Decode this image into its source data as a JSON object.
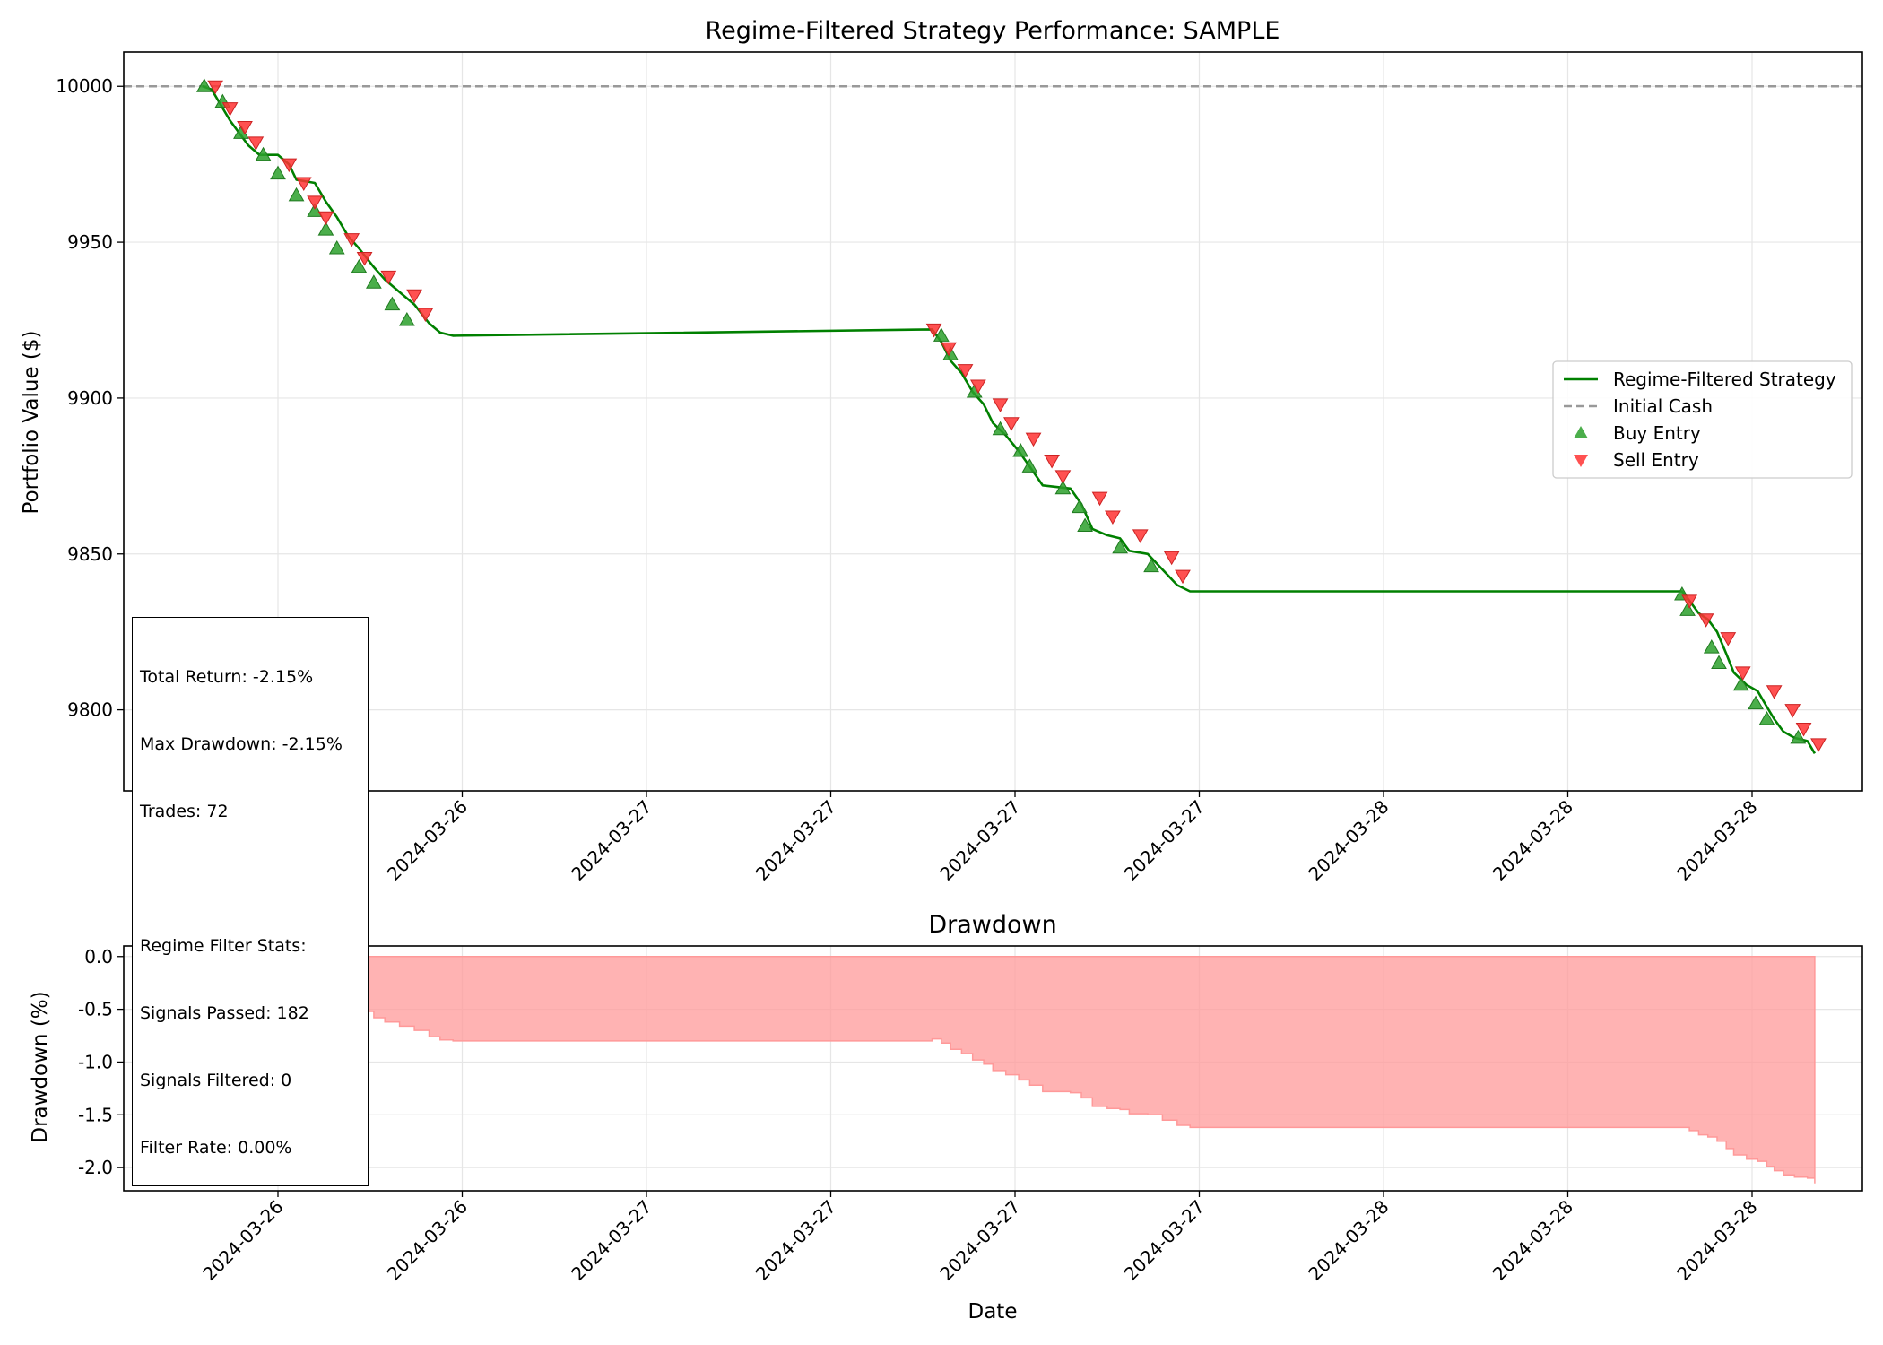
{
  "chart_data": [
    {
      "type": "line",
      "title": "Regime-Filtered Strategy Performance: SAMPLE",
      "xlabel": "",
      "ylabel": "Portfolio Value ($)",
      "ylim": [
        9774,
        10011
      ],
      "y_ticks": [
        10000,
        9950,
        9900,
        9850,
        9800
      ],
      "x_tick_labels": [
        "2024-03-26",
        "2024-03-26",
        "2024-03-27",
        "2024-03-27",
        "2024-03-27",
        "2024-03-27",
        "2024-03-28",
        "2024-03-28",
        "2024-03-28"
      ],
      "grid": true,
      "legend_position": "center-right",
      "legend": [
        {
          "label": "Regime-Filtered Strategy",
          "kind": "line",
          "color": "#008000"
        },
        {
          "label": "Initial Cash",
          "kind": "dashed",
          "color": "#999999"
        },
        {
          "label": "Buy Entry",
          "kind": "triangle-up",
          "color": "#2ca02c"
        },
        {
          "label": "Sell Entry",
          "kind": "triangle-down",
          "color": "#ff3333"
        }
      ],
      "initial_cash": 10000,
      "x_range_ticks": [
        -0.42,
        9.28
      ],
      "series": [
        {
          "name": "Regime-Filtered Strategy",
          "points": [
            [
              -0.41,
              10000
            ],
            [
              -0.36,
              9999
            ],
            [
              -0.31,
              9994
            ],
            [
              -0.26,
              9989
            ],
            [
              -0.21,
              9985
            ],
            [
              -0.16,
              9981
            ],
            [
              -0.1,
              9978
            ],
            [
              0.0,
              9978
            ],
            [
              0.06,
              9975
            ],
            [
              0.1,
              9970
            ],
            [
              0.2,
              9969
            ],
            [
              0.26,
              9963
            ],
            [
              0.32,
              9958
            ],
            [
              0.38,
              9952
            ],
            [
              0.44,
              9948
            ],
            [
              0.52,
              9942
            ],
            [
              0.58,
              9938
            ],
            [
              0.66,
              9934
            ],
            [
              0.74,
              9930
            ],
            [
              0.82,
              9924
            ],
            [
              0.88,
              9921
            ],
            [
              0.95,
              9920
            ],
            [
              3.55,
              9922
            ],
            [
              3.6,
              9918
            ],
            [
              3.65,
              9912
            ],
            [
              3.71,
              9908
            ],
            [
              3.77,
              9902
            ],
            [
              3.83,
              9898
            ],
            [
              3.88,
              9892
            ],
            [
              3.95,
              9888
            ],
            [
              4.02,
              9883
            ],
            [
              4.08,
              9878
            ],
            [
              4.15,
              9872
            ],
            [
              4.3,
              9871
            ],
            [
              4.36,
              9866
            ],
            [
              4.42,
              9858
            ],
            [
              4.5,
              9856
            ],
            [
              4.57,
              9855
            ],
            [
              4.62,
              9851
            ],
            [
              4.72,
              9850
            ],
            [
              4.8,
              9845
            ],
            [
              4.88,
              9840
            ],
            [
              4.95,
              9838
            ],
            [
              5.1,
              9838
            ],
            [
              7.62,
              9838
            ],
            [
              7.66,
              9835
            ],
            [
              7.71,
              9831
            ],
            [
              7.76,
              9829
            ],
            [
              7.81,
              9825
            ],
            [
              7.86,
              9818
            ],
            [
              7.9,
              9812
            ],
            [
              7.97,
              9808
            ],
            [
              8.03,
              9806
            ],
            [
              8.08,
              9801
            ],
            [
              8.12,
              9797
            ],
            [
              8.17,
              9793
            ],
            [
              8.23,
              9791
            ],
            [
              8.3,
              9790
            ],
            [
              8.34,
              9786
            ]
          ]
        },
        {
          "name": "Buy Entry",
          "points": [
            [
              -0.4,
              10000
            ],
            [
              -0.3,
              9995
            ],
            [
              -0.2,
              9985
            ],
            [
              -0.08,
              9978
            ],
            [
              0.0,
              9972
            ],
            [
              0.1,
              9965
            ],
            [
              0.2,
              9960
            ],
            [
              0.26,
              9954
            ],
            [
              0.32,
              9948
            ],
            [
              0.44,
              9942
            ],
            [
              0.52,
              9937
            ],
            [
              0.62,
              9930
            ],
            [
              0.7,
              9925
            ],
            [
              3.6,
              9920
            ],
            [
              3.65,
              9914
            ],
            [
              3.78,
              9902
            ],
            [
              3.92,
              9890
            ],
            [
              4.03,
              9883
            ],
            [
              4.08,
              9878
            ],
            [
              4.26,
              9871
            ],
            [
              4.35,
              9865
            ],
            [
              4.38,
              9859
            ],
            [
              4.57,
              9852
            ],
            [
              4.74,
              9846
            ],
            [
              7.62,
              9837
            ],
            [
              7.65,
              9832
            ],
            [
              7.78,
              9820
            ],
            [
              7.82,
              9815
            ],
            [
              7.94,
              9808
            ],
            [
              8.02,
              9802
            ],
            [
              8.08,
              9797
            ],
            [
              8.25,
              9791
            ]
          ]
        },
        {
          "name": "Sell Entry",
          "points": [
            [
              -0.34,
              10000
            ],
            [
              -0.26,
              9993
            ],
            [
              -0.18,
              9987
            ],
            [
              -0.12,
              9982
            ],
            [
              0.06,
              9975
            ],
            [
              0.14,
              9969
            ],
            [
              0.2,
              9963
            ],
            [
              0.26,
              9958
            ],
            [
              0.4,
              9951
            ],
            [
              0.47,
              9945
            ],
            [
              0.6,
              9939
            ],
            [
              0.74,
              9933
            ],
            [
              0.8,
              9927
            ],
            [
              3.56,
              9922
            ],
            [
              3.64,
              9916
            ],
            [
              3.73,
              9909
            ],
            [
              3.8,
              9904
            ],
            [
              3.92,
              9898
            ],
            [
              3.98,
              9892
            ],
            [
              4.1,
              9887
            ],
            [
              4.2,
              9880
            ],
            [
              4.26,
              9875
            ],
            [
              4.46,
              9868
            ],
            [
              4.53,
              9862
            ],
            [
              4.68,
              9856
            ],
            [
              4.85,
              9849
            ],
            [
              4.91,
              9843
            ],
            [
              7.66,
              9835
            ],
            [
              7.75,
              9829
            ],
            [
              7.87,
              9823
            ],
            [
              7.95,
              9812
            ],
            [
              8.12,
              9806
            ],
            [
              8.22,
              9800
            ],
            [
              8.28,
              9794
            ],
            [
              8.36,
              9789
            ]
          ]
        }
      ]
    },
    {
      "type": "area",
      "title": "Drawdown",
      "xlabel": "Date",
      "ylabel": "Drawdown (%)",
      "ylim": [
        -2.22,
        0.1
      ],
      "y_ticks": [
        0.0,
        -0.5,
        -1.0,
        -1.5,
        -2.0
      ],
      "x_tick_labels": [
        "2024-03-26",
        "2024-03-26",
        "2024-03-27",
        "2024-03-27",
        "2024-03-27",
        "2024-03-27",
        "2024-03-28",
        "2024-03-28",
        "2024-03-28"
      ],
      "grid": true,
      "color": "#ff9999",
      "series": [
        {
          "points": [
            [
              -0.41,
              0.0
            ],
            [
              -0.36,
              -0.01
            ],
            [
              -0.31,
              -0.06
            ],
            [
              -0.26,
              -0.11
            ],
            [
              -0.21,
              -0.15
            ],
            [
              -0.16,
              -0.19
            ],
            [
              -0.1,
              -0.22
            ],
            [
              0.0,
              -0.22
            ],
            [
              0.06,
              -0.25
            ],
            [
              0.1,
              -0.3
            ],
            [
              0.2,
              -0.31
            ],
            [
              0.26,
              -0.37
            ],
            [
              0.32,
              -0.42
            ],
            [
              0.38,
              -0.48
            ],
            [
              0.44,
              -0.52
            ],
            [
              0.52,
              -0.58
            ],
            [
              0.58,
              -0.62
            ],
            [
              0.66,
              -0.66
            ],
            [
              0.74,
              -0.7
            ],
            [
              0.82,
              -0.76
            ],
            [
              0.88,
              -0.79
            ],
            [
              0.95,
              -0.8
            ],
            [
              3.55,
              -0.78
            ],
            [
              3.6,
              -0.82
            ],
            [
              3.65,
              -0.88
            ],
            [
              3.71,
              -0.92
            ],
            [
              3.77,
              -0.98
            ],
            [
              3.83,
              -1.02
            ],
            [
              3.88,
              -1.08
            ],
            [
              3.95,
              -1.12
            ],
            [
              4.02,
              -1.17
            ],
            [
              4.08,
              -1.22
            ],
            [
              4.15,
              -1.28
            ],
            [
              4.3,
              -1.29
            ],
            [
              4.36,
              -1.34
            ],
            [
              4.42,
              -1.42
            ],
            [
              4.5,
              -1.44
            ],
            [
              4.57,
              -1.45
            ],
            [
              4.62,
              -1.49
            ],
            [
              4.72,
              -1.5
            ],
            [
              4.8,
              -1.55
            ],
            [
              4.88,
              -1.6
            ],
            [
              4.95,
              -1.62
            ],
            [
              5.1,
              -1.62
            ],
            [
              7.62,
              -1.62
            ],
            [
              7.66,
              -1.65
            ],
            [
              7.71,
              -1.69
            ],
            [
              7.76,
              -1.71
            ],
            [
              7.81,
              -1.75
            ],
            [
              7.86,
              -1.82
            ],
            [
              7.9,
              -1.88
            ],
            [
              7.97,
              -1.92
            ],
            [
              8.03,
              -1.94
            ],
            [
              8.08,
              -1.99
            ],
            [
              8.12,
              -2.03
            ],
            [
              8.17,
              -2.07
            ],
            [
              8.23,
              -2.09
            ],
            [
              8.3,
              -2.1
            ],
            [
              8.34,
              -2.15
            ]
          ]
        }
      ]
    }
  ],
  "stats_box": {
    "lines": [
      "Total Return: -2.15%",
      "Max Drawdown: -2.15%",
      "Trades: 72",
      "",
      "Regime Filter Stats:",
      "Signals Passed: 182",
      "Signals Filtered: 0",
      "Filter Rate: 0.00%"
    ]
  }
}
